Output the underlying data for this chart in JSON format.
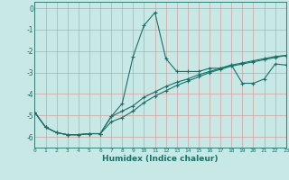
{
  "xlabel": "Humidex (Indice chaleur)",
  "background_color": "#c8e8e5",
  "line_color": "#1a7068",
  "grid_color": "#d09090",
  "xlim": [
    0,
    23
  ],
  "ylim": [
    -6.5,
    0.3
  ],
  "yticks": [
    0,
    -1,
    -2,
    -3,
    -4,
    -5,
    -6
  ],
  "xticks": [
    0,
    1,
    2,
    3,
    4,
    5,
    6,
    7,
    8,
    9,
    10,
    11,
    12,
    13,
    14,
    15,
    16,
    17,
    18,
    19,
    20,
    21,
    22,
    23
  ],
  "line1_x": [
    0,
    1,
    2,
    3,
    4,
    5,
    6,
    7,
    8,
    9,
    10,
    11,
    12,
    13,
    14,
    15,
    16,
    17,
    18,
    19,
    20,
    21,
    22,
    23
  ],
  "line1_y": [
    -4.85,
    -5.55,
    -5.8,
    -5.9,
    -5.9,
    -5.85,
    -5.85,
    -5.05,
    -4.45,
    -2.25,
    -0.8,
    -0.2,
    -2.35,
    -2.95,
    -2.95,
    -2.95,
    -2.8,
    -2.8,
    -2.65,
    -3.5,
    -3.5,
    -3.3,
    -2.6,
    -2.65
  ],
  "line2_x": [
    0,
    1,
    2,
    3,
    4,
    5,
    6,
    7,
    8,
    9,
    10,
    11,
    12,
    13,
    14,
    15,
    16,
    17,
    18,
    19,
    20,
    21,
    22,
    23
  ],
  "line2_y": [
    -4.85,
    -5.55,
    -5.8,
    -5.9,
    -5.9,
    -5.85,
    -5.85,
    -5.05,
    -4.8,
    -4.55,
    -4.15,
    -3.9,
    -3.65,
    -3.45,
    -3.3,
    -3.1,
    -2.95,
    -2.8,
    -2.65,
    -2.55,
    -2.45,
    -2.35,
    -2.25,
    -2.2
  ],
  "line3_x": [
    0,
    1,
    2,
    3,
    4,
    5,
    6,
    7,
    8,
    9,
    10,
    11,
    12,
    13,
    14,
    15,
    16,
    17,
    18,
    19,
    20,
    21,
    22,
    23
  ],
  "line3_y": [
    -4.85,
    -5.55,
    -5.8,
    -5.9,
    -5.9,
    -5.85,
    -5.85,
    -5.3,
    -5.1,
    -4.8,
    -4.4,
    -4.1,
    -3.85,
    -3.6,
    -3.4,
    -3.2,
    -3.0,
    -2.85,
    -2.7,
    -2.6,
    -2.5,
    -2.4,
    -2.3,
    -2.2
  ]
}
